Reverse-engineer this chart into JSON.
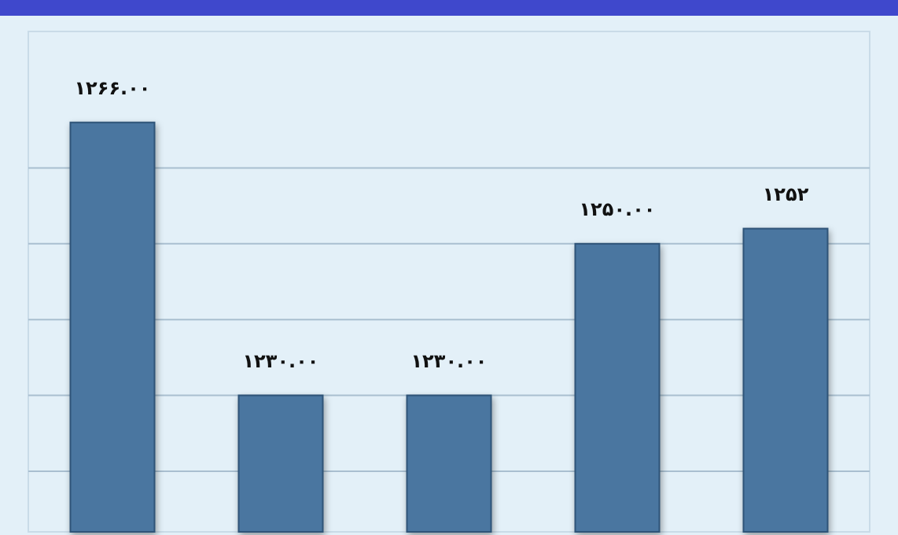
{
  "chart_data": {
    "type": "bar",
    "categories": [
      null,
      null,
      null,
      null,
      null
    ],
    "values": [
      1266,
      1230,
      1230,
      1250,
      1252
    ],
    "color": "#4a76a0",
    "value_labels": [
      "۱۲۶۶.۰۰",
      "۱۲۳۰.۰۰",
      "۱۲۳۰.۰۰",
      "۱۲۵۰.۰۰",
      "۱۲۵۲"
    ],
    "ylim": [
      1212,
      1278
    ],
    "yticks": [
      {
        "value": 1220,
        "label": null
      },
      {
        "value": 1230,
        "label": null
      },
      {
        "value": 1240,
        "label": null
      },
      {
        "value": 1250,
        "label": null
      },
      {
        "value": 1260,
        "label": null
      }
    ],
    "grid": true
  }
}
